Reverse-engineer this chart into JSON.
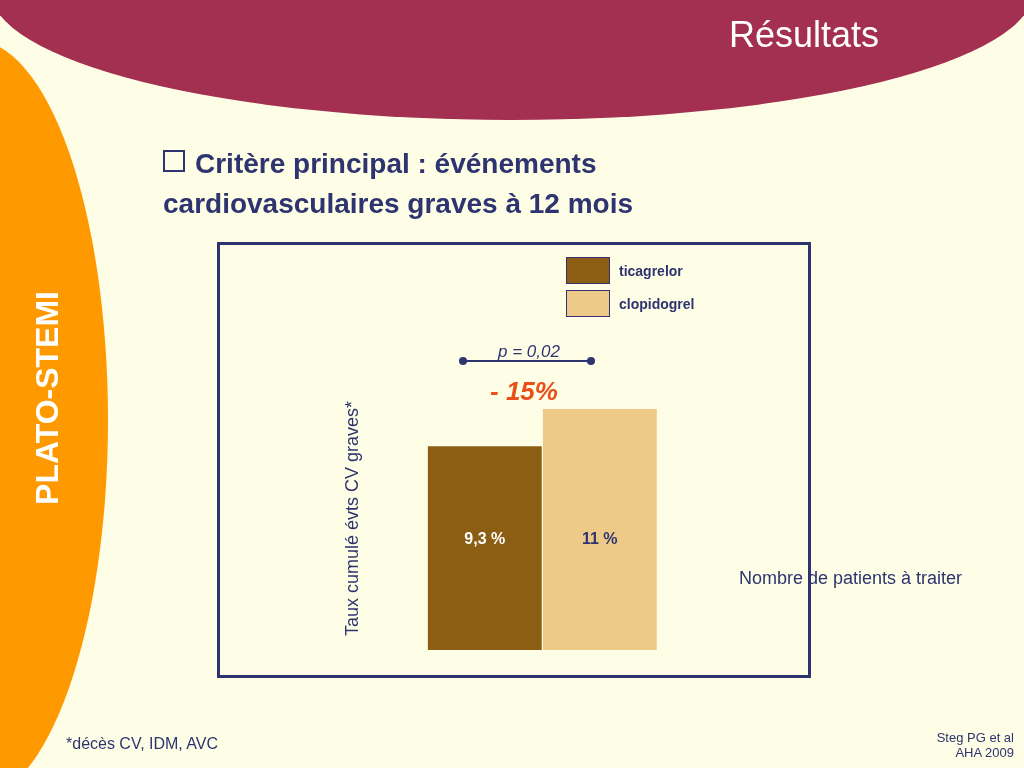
{
  "chart_data": {
    "type": "bar",
    "title": "Résultats",
    "subtitle": "Critère principal : événements cardiovasculaires graves à 12 mois",
    "ylabel": "Taux cumulé évts CV graves*",
    "categories": [
      null
    ],
    "series": [
      {
        "name": "ticagrelor",
        "color": "#8b5e14",
        "values": [
          9.3
        ],
        "value_labels": [
          "9,3 %"
        ]
      },
      {
        "name": "clopidogrel",
        "color": "#edca87",
        "values": [
          11
        ],
        "value_labels": [
          "11 %"
        ]
      }
    ],
    "legend": "top right",
    "annotations": [
      "p = 0,02",
      "- 15%",
      "Nombre de patients à traiter",
      "*décès CV, IDM, AVC",
      "Steg PG et al AHA 2009",
      "PLATO-STEMI"
    ]
  }
}
